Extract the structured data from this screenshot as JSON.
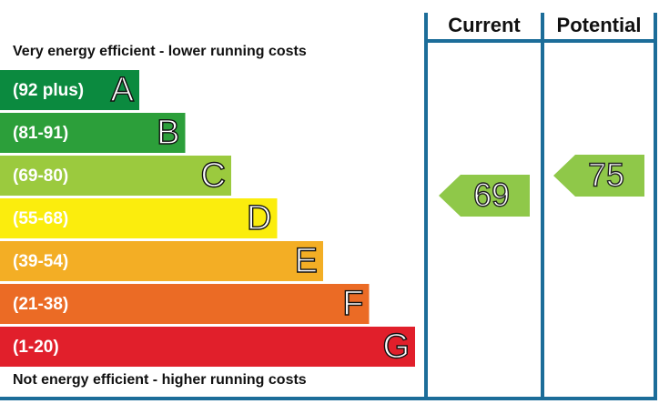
{
  "chart_data": {
    "type": "epc",
    "column_headers": [
      "Current",
      "Potential"
    ],
    "top_note": "Very energy efficient - lower running costs",
    "bottom_note": "Not energy efficient - higher running costs",
    "bands": [
      {
        "range": "(92 plus)",
        "letter": "A",
        "color": "#0b8a3f"
      },
      {
        "range": "(81-91)",
        "letter": "B",
        "color": "#2c9f3a"
      },
      {
        "range": "(69-80)",
        "letter": "C",
        "color": "#9bca3e"
      },
      {
        "range": "(55-68)",
        "letter": "D",
        "color": "#fbed0d"
      },
      {
        "range": "(39-54)",
        "letter": "E",
        "color": "#f3ae25"
      },
      {
        "range": "(21-38)",
        "letter": "F",
        "color": "#eb6b25"
      },
      {
        "range": "(1-20)",
        "letter": "G",
        "color": "#e11f2b"
      }
    ],
    "ratings": [
      {
        "value": 69,
        "band": "C",
        "color": "#8fc849"
      },
      {
        "value": 75,
        "band": "C",
        "color": "#8fc849"
      }
    ]
  }
}
